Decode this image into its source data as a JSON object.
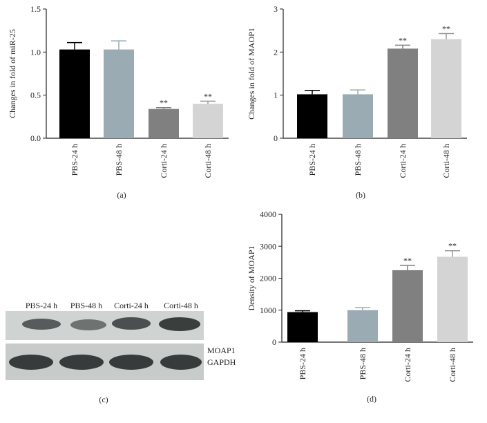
{
  "chart_data": [
    {
      "type": "bar",
      "caption": "(a)",
      "ylabel": "Changes in fold of miR-25",
      "categories": [
        "PBS-24 h",
        "PBS-48 h",
        "Corti-24 h",
        "Corti-48 h"
      ],
      "values": [
        1.03,
        1.03,
        0.34,
        0.4
      ],
      "errors": [
        0.08,
        0.1,
        0.015,
        0.03
      ],
      "significance": [
        null,
        null,
        "**",
        "**"
      ],
      "colors": [
        "#000000",
        "#9aabb3",
        "#808080",
        "#d4d4d4"
      ],
      "ylim": [
        0,
        1.5
      ],
      "yticks": [
        {
          "value": 0,
          "label": "0.0"
        },
        {
          "value": 0.5,
          "label": "0.5"
        },
        {
          "value": 1,
          "label": "1.0"
        },
        {
          "value": 1.5,
          "label": "1.5"
        }
      ]
    },
    {
      "type": "bar",
      "caption": "(b)",
      "ylabel": "Changes in fold of MAOP1",
      "categories": [
        "PBS-24 h",
        "PBS-48 h",
        "Corti-24 h",
        "Corti-48 h"
      ],
      "values": [
        1.02,
        1.02,
        2.08,
        2.3
      ],
      "errors": [
        0.09,
        0.1,
        0.08,
        0.13
      ],
      "significance": [
        null,
        null,
        "**",
        "**"
      ],
      "colors": [
        "#000000",
        "#9aabb3",
        "#808080",
        "#d4d4d4"
      ],
      "ylim": [
        0,
        3
      ],
      "yticks": [
        0,
        1,
        2,
        3
      ]
    },
    {
      "type": "bar",
      "caption": "(d)",
      "ylabel": "Density of MOAP1",
      "categories": [
        "PBS-24 h",
        "PBS-48 h",
        "Corti-24 h",
        "Corti-48 h"
      ],
      "values": [
        940,
        1000,
        2250,
        2670
      ],
      "errors": [
        40,
        80,
        150,
        190
      ],
      "significance": [
        null,
        null,
        "**",
        "**"
      ],
      "colors": [
        "#000000",
        "#9aabb3",
        "#808080",
        "#d4d4d4"
      ],
      "ylim": [
        0,
        4000
      ],
      "yticks": [
        0,
        1000,
        2000,
        3000,
        4000
      ]
    }
  ],
  "blot": {
    "caption": "(c)",
    "lanes": [
      "PBS-24 h",
      "PBS-48 h",
      "Corti-24 h",
      "Corti-48 h"
    ],
    "bands": [
      "MOAP1",
      "GAPDH"
    ]
  }
}
